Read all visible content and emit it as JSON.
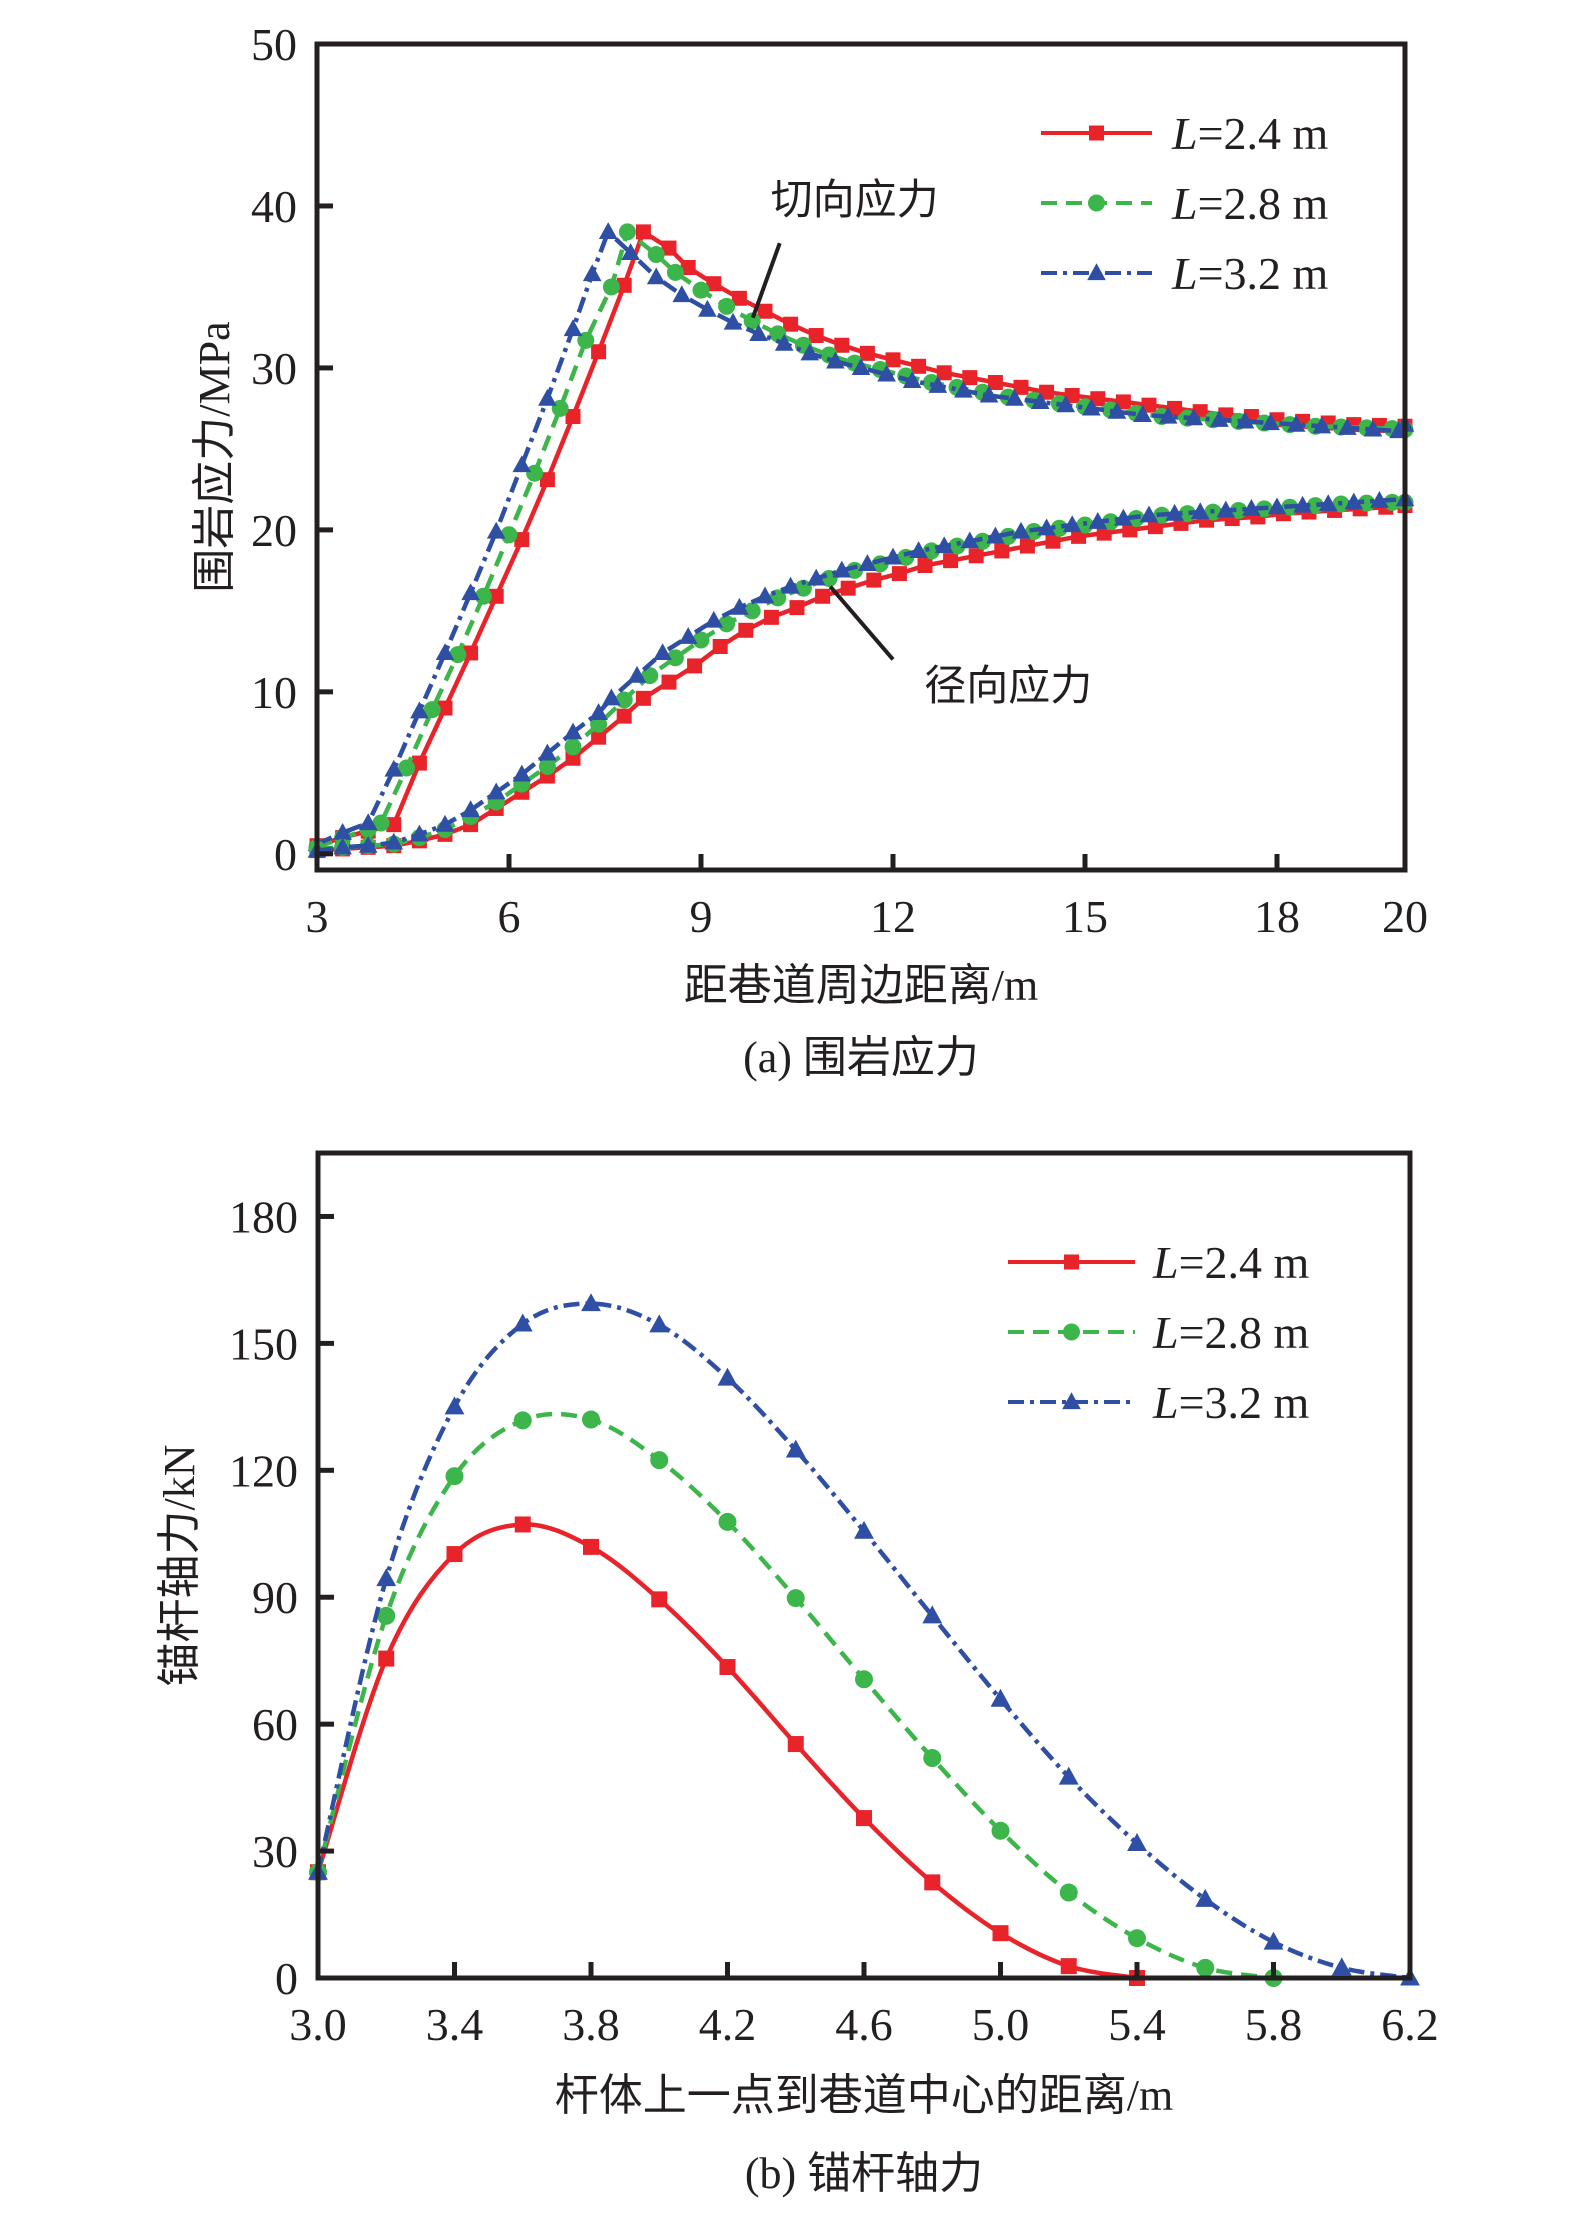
{
  "chart_data": [
    {
      "id": "a",
      "type": "line",
      "caption": "(a) 围岩应力",
      "xlabel": "距巷道周边距离/m",
      "ylabel": "围岩应力/MPa",
      "xlim": [
        3,
        20
      ],
      "ylim": [
        -1,
        50
      ],
      "xticks": [
        3,
        6,
        9,
        12,
        15,
        18,
        20
      ],
      "xtick_labels": [
        "3",
        "6",
        "9",
        "12",
        "15",
        "18",
        "20"
      ],
      "yticks": [
        0,
        10,
        20,
        30,
        40,
        50
      ],
      "ytick_labels": [
        "0",
        "10",
        "20",
        "30",
        "40",
        "50"
      ],
      "grid": false,
      "legend_position": "top-right",
      "annotations": [
        {
          "text": "切向应力",
          "label_at": [
            11.4,
            39.5
          ],
          "line_from": [
            10.23,
            37.7
          ],
          "line_to": [
            9.81,
            33.1
          ]
        },
        {
          "text": "径向应力",
          "label_at": [
            13.8,
            9.5
          ],
          "line_from": [
            12.0,
            12.0
          ],
          "line_to": [
            11.02,
            16.5
          ]
        }
      ],
      "series": [
        {
          "name": "L=2.4 m",
          "group": "切向应力",
          "color": "#e8242a",
          "marker": "square",
          "dash": "solid",
          "x": [
            3.0,
            3.4,
            3.8,
            4.2,
            4.6,
            5.0,
            5.4,
            5.8,
            6.2,
            6.6,
            7.0,
            7.4,
            7.8,
            8.1,
            8.5,
            8.8,
            9.2,
            9.6,
            10.0,
            10.4,
            10.8,
            11.2,
            11.6,
            12.0,
            12.4,
            12.8,
            13.2,
            13.6,
            14.0,
            14.4,
            14.8,
            15.2,
            15.6,
            16.0,
            16.4,
            16.8,
            17.2,
            17.6,
            18.0,
            18.4,
            18.8,
            19.2,
            19.6,
            20.0
          ],
          "y": [
            0.5,
            1.0,
            1.4,
            1.8,
            5.6,
            9.0,
            12.4,
            15.9,
            19.4,
            23.1,
            27.0,
            31.0,
            35.1,
            38.4,
            37.4,
            36.2,
            35.2,
            34.3,
            33.5,
            32.7,
            32.0,
            31.4,
            30.9,
            30.5,
            30.1,
            29.7,
            29.4,
            29.1,
            28.8,
            28.5,
            28.3,
            28.1,
            27.9,
            27.7,
            27.5,
            27.3,
            27.1,
            27.0,
            26.8,
            26.7,
            26.6,
            26.5,
            26.45,
            26.4
          ]
        },
        {
          "name": "L=2.8 m",
          "group": "切向应力",
          "color": "#3cb54a",
          "marker": "circle",
          "dash": "dashed",
          "x": [
            3.0,
            3.4,
            3.8,
            4.0,
            4.4,
            4.8,
            5.2,
            5.6,
            6.0,
            6.4,
            6.8,
            7.2,
            7.6,
            7.85,
            8.3,
            8.6,
            9.0,
            9.4,
            9.8,
            10.2,
            10.6,
            11.0,
            11.4,
            11.8,
            12.2,
            12.6,
            13.0,
            13.4,
            13.8,
            14.2,
            14.6,
            15.0,
            15.4,
            15.8,
            16.2,
            16.6,
            17.0,
            17.4,
            17.8,
            18.2,
            18.6,
            19.0,
            19.4,
            19.8,
            20.0
          ],
          "y": [
            0.4,
            1.0,
            1.5,
            1.9,
            5.3,
            8.9,
            12.3,
            15.9,
            19.7,
            23.5,
            27.5,
            31.7,
            35.0,
            38.4,
            37.0,
            35.9,
            34.8,
            33.8,
            32.9,
            32.1,
            31.4,
            30.8,
            30.3,
            29.9,
            29.5,
            29.1,
            28.8,
            28.5,
            28.2,
            28.0,
            27.8,
            27.6,
            27.4,
            27.2,
            27.0,
            26.9,
            26.8,
            26.7,
            26.6,
            26.5,
            26.4,
            26.35,
            26.3,
            26.25,
            26.2
          ]
        },
        {
          "name": "L=3.2 m",
          "group": "切向应力",
          "color": "#2e4fa3",
          "marker": "triangle",
          "dash": "dashdot",
          "x": [
            3.0,
            3.4,
            3.8,
            4.2,
            4.6,
            5.0,
            5.4,
            5.8,
            6.2,
            6.6,
            7.0,
            7.3,
            7.55,
            7.9,
            8.3,
            8.7,
            9.1,
            9.5,
            9.9,
            10.3,
            10.7,
            11.1,
            11.5,
            11.9,
            12.3,
            12.7,
            13.1,
            13.5,
            13.9,
            14.3,
            14.7,
            15.1,
            15.5,
            15.9,
            16.3,
            16.7,
            17.1,
            17.5,
            17.9,
            18.3,
            18.7,
            19.1,
            19.5,
            19.9,
            20.0
          ],
          "y": [
            0.6,
            1.3,
            1.9,
            5.2,
            8.8,
            12.4,
            16.1,
            19.9,
            24.0,
            28.1,
            32.4,
            35.8,
            38.4,
            37.1,
            35.6,
            34.5,
            33.6,
            32.8,
            32.1,
            31.5,
            30.9,
            30.4,
            30.0,
            29.6,
            29.2,
            28.9,
            28.6,
            28.3,
            28.1,
            27.9,
            27.7,
            27.5,
            27.3,
            27.1,
            27.0,
            26.9,
            26.8,
            26.7,
            26.6,
            26.5,
            26.4,
            26.3,
            26.2,
            26.1,
            26.5
          ]
        },
        {
          "name": "L=2.4 m",
          "group": "径向应力",
          "color": "#e8242a",
          "marker": "square",
          "dash": "solid",
          "x": [
            3.0,
            3.4,
            3.8,
            4.2,
            4.6,
            5.0,
            5.4,
            5.8,
            6.2,
            6.6,
            7.0,
            7.4,
            7.8,
            8.1,
            8.5,
            8.9,
            9.3,
            9.7,
            10.1,
            10.5,
            10.9,
            11.3,
            11.7,
            12.1,
            12.5,
            12.9,
            13.3,
            13.7,
            14.1,
            14.5,
            14.9,
            15.3,
            15.7,
            16.1,
            16.5,
            16.9,
            17.3,
            17.7,
            18.1,
            18.5,
            18.9,
            19.3,
            19.7,
            20.0
          ],
          "y": [
            0.2,
            0.3,
            0.4,
            0.5,
            0.8,
            1.2,
            1.8,
            2.8,
            3.8,
            4.8,
            5.9,
            7.2,
            8.5,
            9.6,
            10.6,
            11.6,
            12.8,
            13.8,
            14.6,
            15.2,
            15.9,
            16.4,
            16.9,
            17.3,
            17.8,
            18.1,
            18.4,
            18.7,
            19.0,
            19.3,
            19.6,
            19.8,
            20.0,
            20.2,
            20.4,
            20.6,
            20.7,
            20.8,
            21.0,
            21.1,
            21.2,
            21.3,
            21.4,
            21.5
          ]
        },
        {
          "name": "L=2.8 m",
          "group": "径向应力",
          "color": "#3cb54a",
          "marker": "circle",
          "dash": "dashed",
          "x": [
            3.0,
            3.4,
            3.8,
            4.2,
            4.6,
            5.0,
            5.4,
            5.8,
            6.2,
            6.6,
            7.0,
            7.4,
            7.8,
            8.2,
            8.6,
            9.0,
            9.4,
            9.8,
            10.2,
            10.6,
            11.0,
            11.4,
            11.8,
            12.2,
            12.6,
            13.0,
            13.4,
            13.8,
            14.2,
            14.6,
            15.0,
            15.4,
            15.8,
            16.2,
            16.6,
            17.0,
            17.4,
            17.8,
            18.2,
            18.6,
            19.0,
            19.4,
            19.8,
            20.0
          ],
          "y": [
            0.3,
            0.4,
            0.5,
            0.6,
            1.0,
            1.5,
            2.3,
            3.2,
            4.3,
            5.4,
            6.6,
            8.0,
            9.5,
            11.0,
            12.1,
            13.2,
            14.2,
            15.0,
            15.8,
            16.4,
            17.0,
            17.5,
            17.9,
            18.3,
            18.7,
            19.0,
            19.3,
            19.6,
            19.9,
            20.1,
            20.3,
            20.5,
            20.7,
            20.9,
            21.0,
            21.1,
            21.2,
            21.3,
            21.4,
            21.5,
            21.6,
            21.65,
            21.7,
            21.7
          ]
        },
        {
          "name": "L=3.2 m",
          "group": "径向应力",
          "color": "#2e4fa3",
          "marker": "triangle",
          "dash": "dashdot",
          "x": [
            3.0,
            3.4,
            3.8,
            4.2,
            4.6,
            5.0,
            5.4,
            5.8,
            6.2,
            6.6,
            7.0,
            7.4,
            7.6,
            8.0,
            8.4,
            8.8,
            9.2,
            9.6,
            10.0,
            10.4,
            10.8,
            11.2,
            11.6,
            12.0,
            12.4,
            12.8,
            13.2,
            13.6,
            14.0,
            14.4,
            14.8,
            15.2,
            15.6,
            16.0,
            16.4,
            16.8,
            17.2,
            17.6,
            18.0,
            18.4,
            18.8,
            19.2,
            19.6,
            20.0
          ],
          "y": [
            0.2,
            0.4,
            0.5,
            0.7,
            1.2,
            1.8,
            2.7,
            3.8,
            4.9,
            6.2,
            7.5,
            8.7,
            9.6,
            11.0,
            12.4,
            13.4,
            14.4,
            15.2,
            15.9,
            16.5,
            17.0,
            17.5,
            17.9,
            18.3,
            18.7,
            19.0,
            19.3,
            19.6,
            19.9,
            20.1,
            20.3,
            20.5,
            20.7,
            20.9,
            21.0,
            21.1,
            21.2,
            21.3,
            21.4,
            21.5,
            21.6,
            21.7,
            21.8,
            21.9
          ]
        }
      ]
    },
    {
      "id": "b",
      "type": "line",
      "caption": "(b) 锚杆轴力",
      "xlabel": "杆体上一点到巷道中心的距离/m",
      "ylabel": "锚杆轴力/kN",
      "xlim": [
        3.0,
        6.2
      ],
      "ylim": [
        0,
        195
      ],
      "xticks": [
        3.0,
        3.4,
        3.8,
        4.2,
        4.6,
        5.0,
        5.4,
        5.8,
        6.2
      ],
      "xtick_labels": [
        "3.0",
        "3.4",
        "3.8",
        "4.2",
        "4.6",
        "5.0",
        "5.4",
        "5.8",
        "6.2"
      ],
      "yticks": [
        0,
        30,
        60,
        90,
        120,
        150,
        180
      ],
      "ytick_labels": [
        "0",
        "30",
        "60",
        "90",
        "120",
        "150",
        "180"
      ],
      "grid": false,
      "legend_position": "top-right",
      "series": [
        {
          "name": "L=2.4 m",
          "color": "#e8242a",
          "marker": "square",
          "dash": "solid",
          "x": [
            3.0,
            3.2,
            3.4,
            3.6,
            3.8,
            4.0,
            4.2,
            4.4,
            4.6,
            4.8,
            5.0,
            5.2,
            5.4
          ],
          "y": [
            25,
            75.5,
            100.2,
            107.2,
            101.9,
            89.5,
            73.5,
            55.3,
            37.8,
            22.6,
            10.6,
            2.8,
            0
          ]
        },
        {
          "name": "L=2.8 m",
          "color": "#3cb54a",
          "marker": "circle",
          "dash": "dashed",
          "x": [
            3.0,
            3.2,
            3.4,
            3.6,
            3.8,
            4.0,
            4.2,
            4.4,
            4.6,
            4.8,
            5.0,
            5.2,
            5.4,
            5.6,
            5.8
          ],
          "y": [
            25,
            85.6,
            118.6,
            131.8,
            132.0,
            122.4,
            107.8,
            89.8,
            70.6,
            52.0,
            34.8,
            20.2,
            9.4,
            2.4,
            0
          ]
        },
        {
          "name": "L=3.2 m",
          "color": "#2e4fa3",
          "marker": "triangle",
          "dash": "dashdot",
          "x": [
            3.0,
            3.2,
            3.4,
            3.6,
            3.8,
            4.0,
            4.2,
            4.4,
            4.6,
            4.8,
            5.0,
            5.2,
            5.4,
            5.6,
            5.8,
            6.0,
            6.2
          ],
          "y": [
            25,
            94.4,
            135.0,
            154.6,
            159.4,
            154.4,
            141.8,
            124.8,
            105.6,
            85.6,
            65.9,
            47.5,
            31.8,
            18.6,
            8.5,
            2.4,
            0
          ]
        }
      ]
    }
  ]
}
